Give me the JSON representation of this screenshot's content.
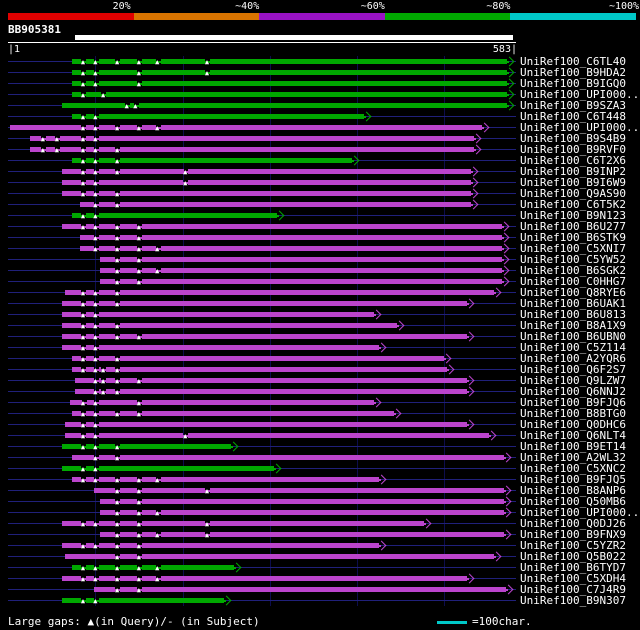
{
  "scale": {
    "labels": [
      "20%",
      "~40%",
      "~60%",
      "~80%",
      "~100%"
    ],
    "colors": [
      "#e00000",
      "#d97400",
      "#9912c4",
      "#00a800",
      "#00c8c8"
    ]
  },
  "query": {
    "name": "BB905381",
    "start_label": "|1",
    "end_label": "583|"
  },
  "legend": {
    "gaps_text": "Large gaps: ▲(in Query)/- (in Subject)",
    "scale_text": "=100char."
  },
  "colors": {
    "green": "#00a800",
    "magenta": "#bb44cc",
    "baseline": "#20207a",
    "grid": "#0d0d4d",
    "cyan": "#00c8c8",
    "query_bar": "#ffffff"
  },
  "chart_data": {
    "type": "bar",
    "orientation": "horizontal-span",
    "title": "BB905381",
    "x_axis": {
      "min": 1,
      "max": 583,
      "grid_interval": 100
    },
    "query_bar": {
      "from": 78,
      "to": 580
    },
    "hits": [
      {
        "label": "UniRef100_C6TL40",
        "color": "green",
        "from": 74,
        "to": 580,
        "gaps": [
          88,
          102,
          127,
          152,
          173,
          230
        ]
      },
      {
        "label": "UniRef100_B9HDA2",
        "color": "green",
        "from": 74,
        "to": 580,
        "gaps": [
          88,
          102,
          152,
          230
        ]
      },
      {
        "label": "UniRef100_B9IGQ0",
        "color": "green",
        "from": 74,
        "to": 580,
        "gaps": [
          88,
          102,
          152
        ]
      },
      {
        "label": "UniRef100_UPI000...",
        "color": "green",
        "from": 74,
        "to": 580,
        "gaps": [
          88,
          111
        ]
      },
      {
        "label": "UniRef100_B9SZA3",
        "color": "green",
        "from": 63,
        "to": 580,
        "gaps": [
          138,
          148
        ]
      },
      {
        "label": "UniRef100_C6T448",
        "color": "green",
        "from": 74,
        "to": 416,
        "gaps": [
          88,
          102
        ]
      },
      {
        "label": "UniRef100_UPI000...",
        "color": "magenta",
        "from": 3,
        "to": 551,
        "gaps": [
          88,
          102,
          127,
          152,
          173
        ]
      },
      {
        "label": "UniRef100_B9S4B9",
        "color": "magenta",
        "from": 26,
        "to": 542,
        "gaps": [
          42,
          58,
          88,
          102
        ]
      },
      {
        "label": "UniRef100_B9RVF0",
        "color": "magenta",
        "from": 26,
        "to": 542,
        "gaps": [
          42,
          58,
          88,
          102,
          127
        ]
      },
      {
        "label": "UniRef100_C6T2X6",
        "color": "green",
        "from": 74,
        "to": 402,
        "gaps": [
          88,
          102,
          127
        ]
      },
      {
        "label": "UniRef100_B9INP2",
        "color": "magenta",
        "from": 63,
        "to": 538,
        "gaps": [
          88,
          102,
          127,
          205
        ]
      },
      {
        "label": "UniRef100_B9I6W9",
        "color": "magenta",
        "from": 63,
        "to": 538,
        "gaps": [
          88,
          102,
          205
        ]
      },
      {
        "label": "UniRef100_Q9AS90",
        "color": "magenta",
        "from": 63,
        "to": 538,
        "gaps": [
          88,
          102,
          127
        ]
      },
      {
        "label": "UniRef100_C6T5K2",
        "color": "magenta",
        "from": 83,
        "to": 538,
        "gaps": [
          102,
          127
        ]
      },
      {
        "label": "UniRef100_B9N123",
        "color": "green",
        "from": 74,
        "to": 316,
        "gaps": [
          88,
          102
        ]
      },
      {
        "label": "UniRef100_B6U277",
        "color": "magenta",
        "from": 63,
        "to": 574,
        "gaps": [
          88,
          102,
          127,
          152
        ]
      },
      {
        "label": "UniRef100_B6STK9",
        "color": "magenta",
        "from": 83,
        "to": 574,
        "gaps": [
          102,
          127,
          152
        ]
      },
      {
        "label": "UniRef100_C5XNI7",
        "color": "magenta",
        "from": 83,
        "to": 574,
        "gaps": [
          102,
          127,
          152,
          173
        ]
      },
      {
        "label": "UniRef100_C5YW52",
        "color": "magenta",
        "from": 106,
        "to": 574,
        "gaps": [
          127,
          152
        ]
      },
      {
        "label": "UniRef100_B6SGK2",
        "color": "magenta",
        "from": 106,
        "to": 574,
        "gaps": [
          127,
          152,
          173
        ]
      },
      {
        "label": "UniRef100_C0HHG7",
        "color": "magenta",
        "from": 106,
        "to": 574,
        "gaps": [
          127,
          152
        ]
      },
      {
        "label": "UniRef100_Q8RYE6",
        "color": "magenta",
        "from": 66,
        "to": 565,
        "gaps": [
          88,
          102,
          127
        ]
      },
      {
        "label": "UniRef100_B6UAK1",
        "color": "magenta",
        "from": 63,
        "to": 534,
        "gaps": [
          88,
          102,
          127
        ]
      },
      {
        "label": "UniRef100_B6U813",
        "color": "magenta",
        "from": 63,
        "to": 427,
        "gaps": [
          88,
          102
        ]
      },
      {
        "label": "UniRef100_B8A1X9",
        "color": "magenta",
        "from": 63,
        "to": 454,
        "gaps": [
          88,
          102,
          127
        ]
      },
      {
        "label": "UniRef100_B6UBN0",
        "color": "magenta",
        "from": 63,
        "to": 534,
        "gaps": [
          88,
          102,
          127,
          152
        ]
      },
      {
        "label": "UniRef100_C5Z114",
        "color": "magenta",
        "from": 63,
        "to": 433,
        "gaps": [
          88,
          102
        ]
      },
      {
        "label": "UniRef100_A2YQR6",
        "color": "magenta",
        "from": 74,
        "to": 507,
        "gaps": [
          88,
          102,
          127
        ]
      },
      {
        "label": "UniRef100_Q6F2S7",
        "color": "magenta",
        "from": 74,
        "to": 511,
        "gaps": [
          88,
          102,
          111,
          127
        ]
      },
      {
        "label": "UniRef100_Q9LZW7",
        "color": "magenta",
        "from": 78,
        "to": 534,
        "gaps": [
          102,
          111,
          127,
          152
        ]
      },
      {
        "label": "UniRef100_Q6NNJ2",
        "color": "magenta",
        "from": 78,
        "to": 534,
        "gaps": [
          102,
          111,
          127
        ]
      },
      {
        "label": "UniRef100_B9FJQ6",
        "color": "magenta",
        "from": 72,
        "to": 427,
        "gaps": [
          88,
          102,
          152
        ]
      },
      {
        "label": "UniRef100_B8BTG0",
        "color": "magenta",
        "from": 74,
        "to": 450,
        "gaps": [
          88,
          102,
          127,
          152
        ]
      },
      {
        "label": "UniRef100_Q0DHC6",
        "color": "magenta",
        "from": 66,
        "to": 534,
        "gaps": [
          88,
          102
        ]
      },
      {
        "label": "UniRef100_Q6NLT4",
        "color": "magenta",
        "from": 66,
        "to": 559,
        "gaps": [
          88,
          102,
          205
        ]
      },
      {
        "label": "UniRef100_B9ET14",
        "color": "green",
        "from": 63,
        "to": 263,
        "gaps": [
          88,
          102,
          127
        ]
      },
      {
        "label": "UniRef100_A2WL32",
        "color": "magenta",
        "from": 74,
        "to": 576,
        "gaps": [
          102,
          127
        ]
      },
      {
        "label": "UniRef100_C5XNC2",
        "color": "green",
        "from": 63,
        "to": 313,
        "gaps": [
          88,
          102
        ]
      },
      {
        "label": "UniRef100_B9FJQ5",
        "color": "magenta",
        "from": 74,
        "to": 433,
        "gaps": [
          88,
          102,
          127,
          152,
          173
        ]
      },
      {
        "label": "UniRef100_B8ANP6",
        "color": "magenta",
        "from": 100,
        "to": 576,
        "gaps": [
          127,
          152,
          230
        ]
      },
      {
        "label": "UniRef100_Q50MB6",
        "color": "magenta",
        "from": 106,
        "to": 576,
        "gaps": [
          127,
          152
        ]
      },
      {
        "label": "UniRef100_UPI000...",
        "color": "magenta",
        "from": 106,
        "to": 576,
        "gaps": [
          127,
          152,
          173
        ]
      },
      {
        "label": "UniRef100_Q0DJ26",
        "color": "magenta",
        "from": 63,
        "to": 485,
        "gaps": [
          88,
          102,
          127,
          152,
          230
        ]
      },
      {
        "label": "UniRef100_B9FNX9",
        "color": "magenta",
        "from": 106,
        "to": 576,
        "gaps": [
          127,
          152,
          173,
          230
        ]
      },
      {
        "label": "UniRef100_C5YZR2",
        "color": "magenta",
        "from": 63,
        "to": 433,
        "gaps": [
          88,
          102,
          127,
          152
        ]
      },
      {
        "label": "UniRef100_Q5B022",
        "color": "magenta",
        "from": 66,
        "to": 565,
        "gaps": [
          127,
          152
        ]
      },
      {
        "label": "UniRef100_B6TYD7",
        "color": "green",
        "from": 74,
        "to": 267,
        "gaps": [
          88,
          102,
          127,
          152,
          173
        ]
      },
      {
        "label": "UniRef100_C5XDH4",
        "color": "magenta",
        "from": 63,
        "to": 534,
        "gaps": [
          88,
          102,
          127,
          152,
          173
        ]
      },
      {
        "label": "UniRef100_C7J4R9",
        "color": "magenta",
        "from": 100,
        "to": 578,
        "gaps": [
          127,
          152
        ]
      },
      {
        "label": "UniRef100_B9N307",
        "color": "green",
        "from": 63,
        "to": 255,
        "gaps": [
          88,
          102
        ]
      }
    ]
  }
}
